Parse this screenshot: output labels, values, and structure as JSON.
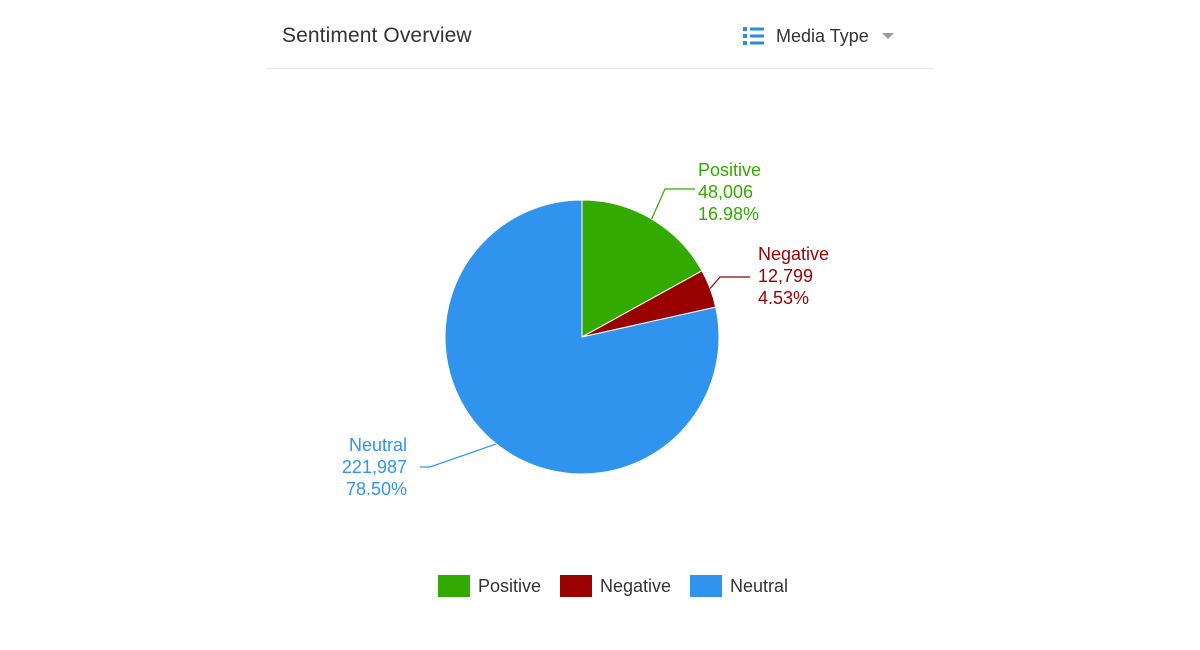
{
  "widget": {
    "title": "Sentiment Overview",
    "dropdown_label": "Media Type",
    "dropdown_icon": "list-icon"
  },
  "chart_data": {
    "type": "pie",
    "slices": [
      {
        "label": "Positive",
        "value": 48006,
        "value_text": "48,006",
        "percent": 16.98,
        "percent_text": "16.98%",
        "color": "#33aa00"
      },
      {
        "label": "Negative",
        "value": 12799,
        "value_text": "12,799",
        "percent": 4.53,
        "percent_text": "4.53%",
        "color": "#990000"
      },
      {
        "label": "Neutral",
        "value": 221987,
        "value_text": "221,987",
        "percent": 78.5,
        "percent_text": "78.50%",
        "color": "#3094ee"
      }
    ],
    "legend_position": "bottom"
  }
}
